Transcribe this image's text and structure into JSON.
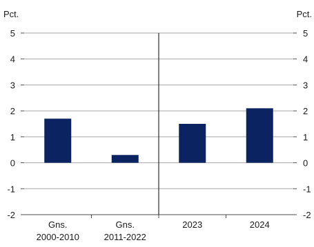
{
  "chart_data": {
    "type": "bar",
    "categories": [
      [
        "Gns.",
        "2000-2010"
      ],
      [
        "Gns.",
        "2011-2022"
      ],
      [
        "2023"
      ],
      [
        "2024"
      ]
    ],
    "values": [
      1.7,
      0.3,
      1.5,
      2.1
    ],
    "y_unit_left": "Pct.",
    "y_unit_right": "Pct.",
    "ylim": [
      -2,
      5
    ],
    "yticks": [
      -2,
      -1,
      0,
      1,
      2,
      3,
      4,
      5
    ],
    "ytick_labels": [
      "-2",
      "-1",
      "0",
      "1",
      "2",
      "3",
      "4",
      "5"
    ],
    "grid": true,
    "divider_after_category": 1,
    "colors": {
      "bar": "#0b2361",
      "grid": "#a6a6a6",
      "axis": "#4d4d4d",
      "divider": "#000000"
    }
  }
}
